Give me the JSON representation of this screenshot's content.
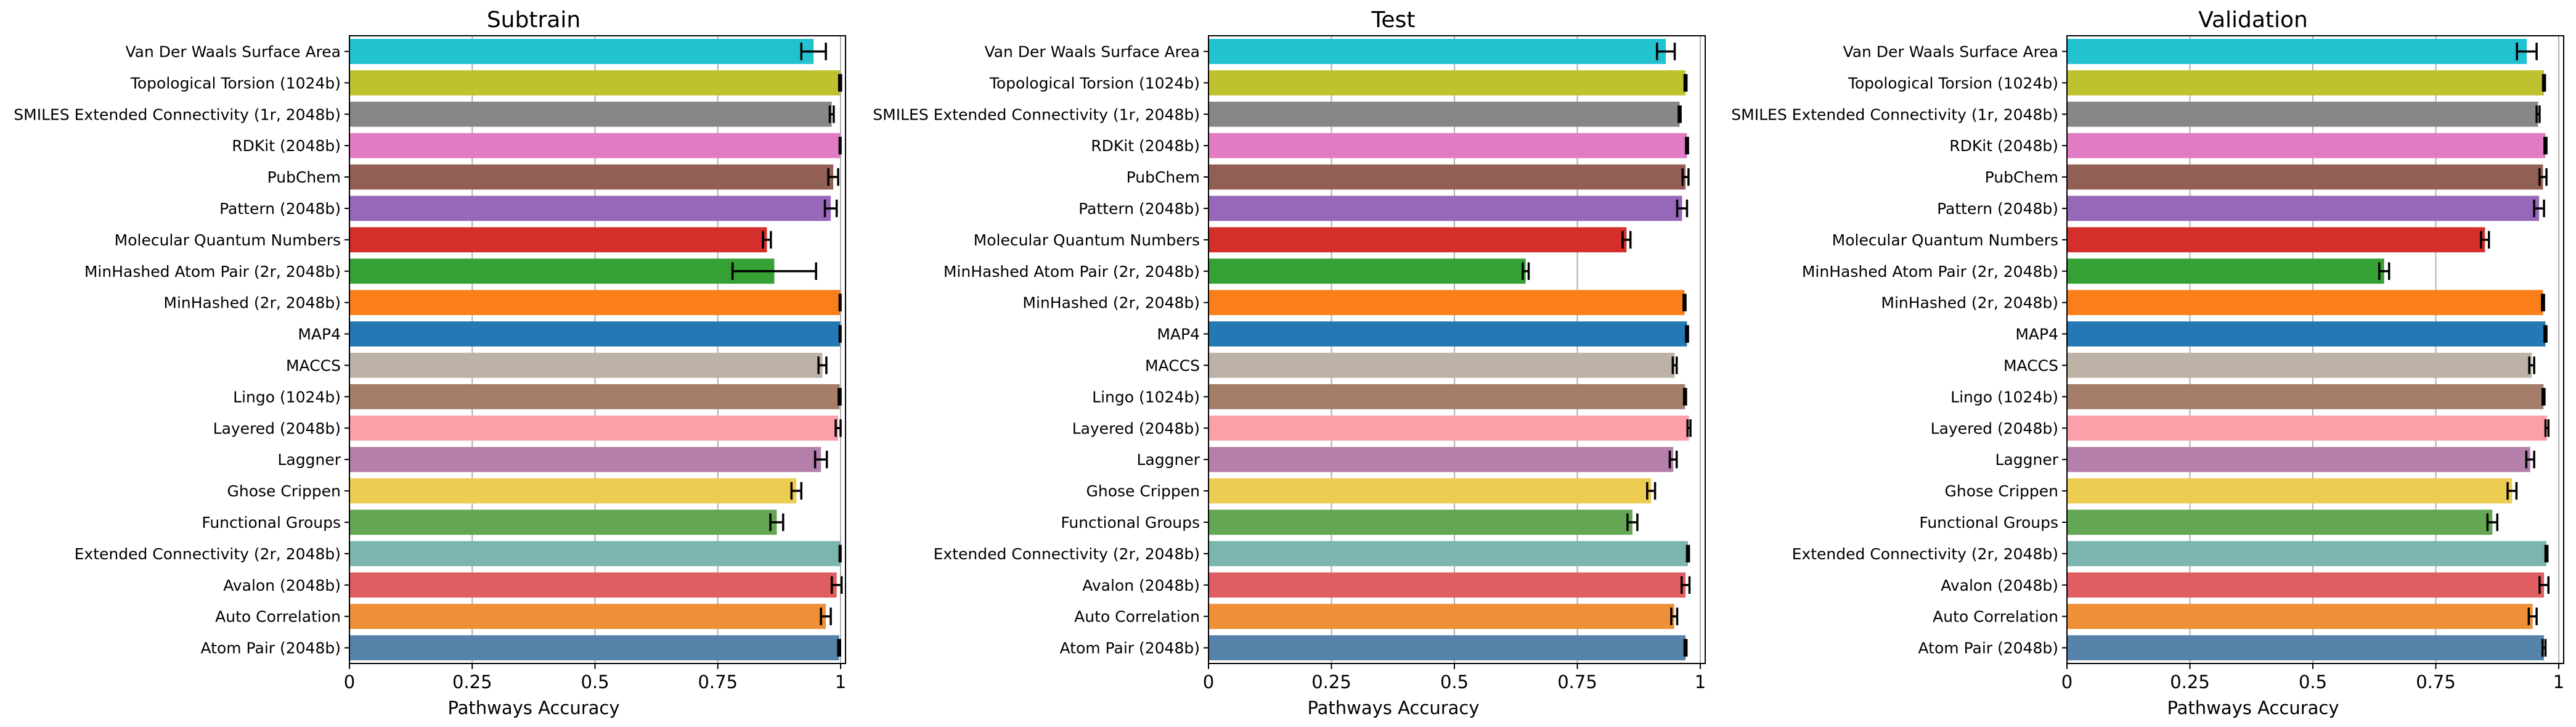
{
  "chart_data": [
    {
      "type": "bar",
      "orientation": "horizontal",
      "title": "Subtrain",
      "xlabel": "Pathways Accuracy",
      "xlim": [
        0,
        1.01
      ],
      "xticks": [
        "0",
        "0.25",
        "0.5",
        "0.75",
        "1"
      ],
      "grid": "vertical",
      "categories": [
        "Van Der Waals Surface Area",
        "Topological Torsion (1024b)",
        "SMILES Extended Connectivity (1r, 2048b)",
        "RDKit (2048b)",
        "PubChem",
        "Pattern (2048b)",
        "Molecular Quantum Numbers",
        "MinHashed Atom Pair (2r, 2048b)",
        "MinHashed (2r, 2048b)",
        "MAP4",
        "MACCS",
        "Lingo (1024b)",
        "Layered (2048b)",
        "Laggner",
        "Ghose Crippen",
        "Functional Groups",
        "Extended Connectivity (2r, 2048b)",
        "Avalon (2048b)",
        "Auto Correlation",
        "Atom Pair (2048b)"
      ],
      "values": [
        0.945,
        0.999,
        0.982,
        0.999,
        0.985,
        0.98,
        0.85,
        0.865,
        0.999,
        0.999,
        0.963,
        0.998,
        0.995,
        0.96,
        0.91,
        0.87,
        0.999,
        0.992,
        0.97,
        0.997
      ],
      "errors": [
        0.025,
        0.002,
        0.004,
        0.001,
        0.01,
        0.012,
        0.008,
        0.085,
        0.001,
        0.001,
        0.008,
        0.002,
        0.005,
        0.012,
        0.01,
        0.013,
        0.001,
        0.01,
        0.01,
        0.002
      ]
    },
    {
      "type": "bar",
      "orientation": "horizontal",
      "title": "Test",
      "xlabel": "Pathways Accuracy",
      "xlim": [
        0,
        1.01
      ],
      "xticks": [
        "0",
        "0.25",
        "0.5",
        "0.75",
        "1"
      ],
      "grid": "vertical",
      "categories": [
        "Van Der Waals Surface Area",
        "Topological Torsion (1024b)",
        "SMILES Extended Connectivity (1r, 2048b)",
        "RDKit (2048b)",
        "PubChem",
        "Pattern (2048b)",
        "Molecular Quantum Numbers",
        "MinHashed Atom Pair (2r, 2048b)",
        "MinHashed (2r, 2048b)",
        "MAP4",
        "MACCS",
        "Lingo (1024b)",
        "Layered (2048b)",
        "Laggner",
        "Ghose Crippen",
        "Functional Groups",
        "Extended Connectivity (2r, 2048b)",
        "Avalon (2048b)",
        "Auto Correlation",
        "Atom Pair (2048b)"
      ],
      "values": [
        0.93,
        0.97,
        0.958,
        0.973,
        0.97,
        0.963,
        0.85,
        0.645,
        0.968,
        0.973,
        0.948,
        0.969,
        0.977,
        0.945,
        0.9,
        0.862,
        0.975,
        0.97,
        0.947,
        0.97
      ],
      "errors": [
        0.018,
        0.002,
        0.002,
        0.002,
        0.006,
        0.01,
        0.008,
        0.006,
        0.002,
        0.002,
        0.004,
        0.002,
        0.003,
        0.007,
        0.008,
        0.01,
        0.002,
        0.008,
        0.006,
        0.002
      ]
    },
    {
      "type": "bar",
      "orientation": "horizontal",
      "title": "Validation",
      "xlabel": "Pathways Accuracy",
      "xlim": [
        0,
        1.01
      ],
      "xticks": [
        "0",
        "0.25",
        "0.5",
        "0.75",
        "1"
      ],
      "grid": "vertical",
      "categories": [
        "Van Der Waals Surface Area",
        "Topological Torsion (1024b)",
        "SMILES Extended Connectivity (1r, 2048b)",
        "RDKit (2048b)",
        "PubChem",
        "Pattern (2048b)",
        "Molecular Quantum Numbers",
        "MinHashed Atom Pair (2r, 2048b)",
        "MinHashed (2r, 2048b)",
        "MAP4",
        "MACCS",
        "Lingo (1024b)",
        "Layered (2048b)",
        "Laggner",
        "Ghose Crippen",
        "Functional Groups",
        "Extended Connectivity (2r, 2048b)",
        "Avalon (2048b)",
        "Auto Correlation",
        "Atom Pair (2048b)"
      ],
      "values": [
        0.935,
        0.97,
        0.958,
        0.973,
        0.968,
        0.96,
        0.85,
        0.645,
        0.968,
        0.973,
        0.945,
        0.969,
        0.976,
        0.942,
        0.905,
        0.865,
        0.975,
        0.97,
        0.947,
        0.97
      ],
      "errors": [
        0.02,
        0.002,
        0.003,
        0.002,
        0.007,
        0.01,
        0.008,
        0.01,
        0.002,
        0.002,
        0.005,
        0.002,
        0.003,
        0.008,
        0.009,
        0.01,
        0.002,
        0.009,
        0.008,
        0.003
      ]
    }
  ],
  "colors": {
    "bars": [
      "#23c2d0",
      "#bec22f",
      "#878787",
      "#e17bc3",
      "#925f55",
      "#9767ba",
      "#d42f2a",
      "#35a034",
      "#fa7f1a",
      "#2479b4",
      "#bcb2a6",
      "#a47e6b",
      "#fb9fa8",
      "#b47fa8",
      "#eccd51",
      "#63a654",
      "#7bb5b0",
      "#e05d61",
      "#ef9038",
      "#5683a9"
    ],
    "grid": "#b0b0b0",
    "axis": "#000000"
  }
}
